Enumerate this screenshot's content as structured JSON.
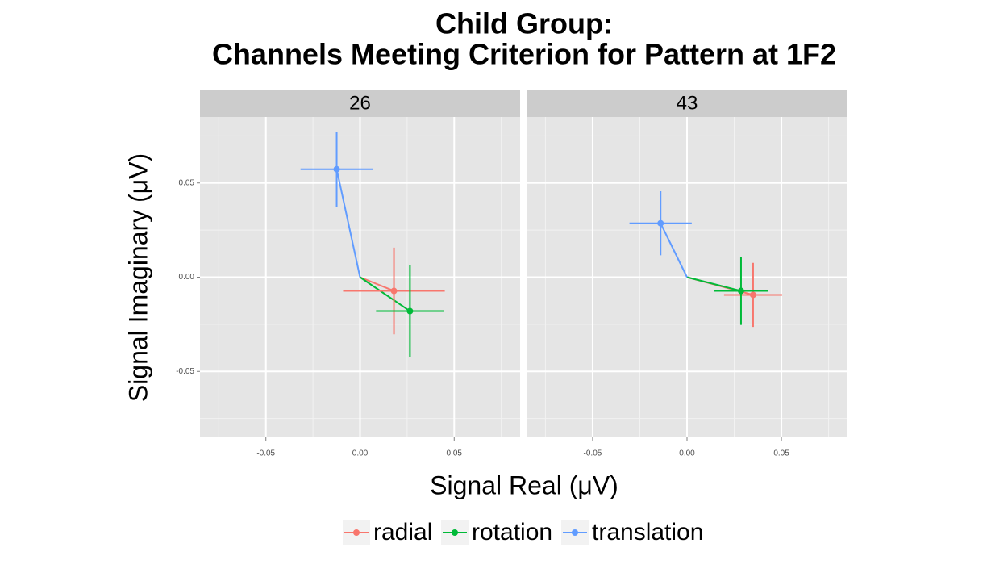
{
  "chart_data": {
    "type": "scatter",
    "title": [
      "Child Group:",
      "Channels Meeting Criterion for Pattern at 1F2"
    ],
    "x_label": "Signal Real (μV)",
    "y_label": "Signal Imaginary (μV)",
    "series": [
      {
        "name": "radial",
        "color": "#F8766D"
      },
      {
        "name": "rotation",
        "color": "#00BA38"
      },
      {
        "name": "translation",
        "color": "#619CFF"
      }
    ],
    "facets": [
      {
        "label": "26",
        "x": [
          0.018,
          0.0265,
          -0.0124
        ],
        "values": [
          -0.0073,
          -0.018,
          0.0573
        ],
        "xerr": [
          0.027,
          0.018,
          0.0192
        ],
        "yerr": [
          0.023,
          0.0244,
          0.02
        ]
      },
      {
        "label": "43",
        "x": [
          0.035,
          0.0286,
          -0.014
        ],
        "values": [
          -0.0094,
          -0.0073,
          0.0286
        ],
        "xerr": [
          0.0154,
          0.0143,
          0.0165
        ],
        "yerr": [
          0.017,
          0.018,
          0.017
        ]
      }
    ],
    "xlim": [
      -0.085,
      0.085
    ],
    "ylim": [
      -0.085,
      0.085
    ],
    "xticks": [
      -0.05,
      {
        "value": 0,
        "label": "0.00"
      },
      0.05
    ],
    "yticks": [
      -0.05,
      {
        "value": 0,
        "label": "0.00"
      },
      0.05
    ],
    "minor_ticks": [
      -0.075,
      -0.025,
      0.025,
      0.075
    ],
    "grid": true
  }
}
